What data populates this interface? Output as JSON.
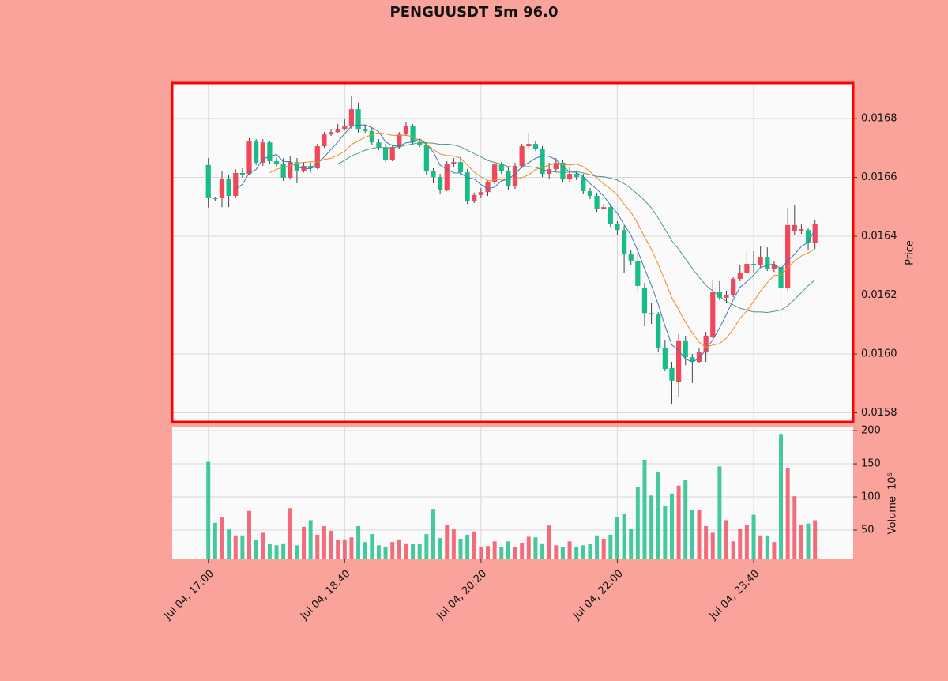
{
  "chart_data": {
    "type": "candlestick",
    "title": "PENGUUSDT 5m 96.0",
    "categories": [
      "Jul 04, 17:00",
      null,
      null,
      null,
      null,
      null,
      null,
      null,
      null,
      null,
      null,
      null,
      null,
      null,
      null,
      null,
      null,
      null,
      null,
      null,
      "Jul 04, 18:40",
      null,
      null,
      null,
      null,
      null,
      null,
      null,
      null,
      null,
      null,
      null,
      null,
      null,
      null,
      null,
      null,
      null,
      null,
      null,
      "Jul 04, 20:20",
      null,
      null,
      null,
      null,
      null,
      null,
      null,
      null,
      null,
      null,
      null,
      null,
      null,
      null,
      null,
      null,
      null,
      null,
      null,
      "Jul 04, 22:00",
      null,
      null,
      null,
      null,
      null,
      null,
      null,
      null,
      null,
      null,
      null,
      null,
      null,
      null,
      null,
      null,
      null,
      null,
      null,
      "Jul 04, 23:40",
      null,
      null,
      null,
      null,
      null,
      null,
      null,
      null,
      null
    ],
    "open": [
      0.016642,
      0.016529,
      0.016529,
      0.016596,
      0.016537,
      0.016615,
      0.016612,
      0.016722,
      0.01665,
      0.016719,
      0.016655,
      0.016647,
      0.016599,
      0.016652,
      0.016623,
      0.016639,
      0.016631,
      0.016706,
      0.016746,
      0.016754,
      0.016765,
      0.016773,
      0.016832,
      0.016765,
      0.016757,
      0.016719,
      0.016703,
      0.01666,
      0.016703,
      0.016746,
      0.016776,
      0.016719,
      0.016711,
      0.01662,
      0.016601,
      0.016558,
      0.016647,
      0.016652,
      0.016617,
      0.016518,
      0.01654,
      0.01655,
      0.016583,
      0.016644,
      0.016623,
      0.016569,
      0.016639,
      0.016706,
      0.016714,
      0.016698,
      0.016612,
      0.016628,
      0.01665,
      0.016593,
      0.016612,
      0.016601,
      0.016553,
      0.016537,
      0.016494,
      0.016499,
      0.016443,
      0.016421,
      0.016338,
      0.016317,
      0.016225,
      0.016139,
      0.016134,
      0.016019,
      0.015952,
      0.015906,
      0.016046,
      0.015989,
      0.015973,
      0.016005,
      0.016059,
      0.016212,
      0.016191,
      0.016201,
      0.016255,
      0.016274,
      0.016306,
      0.016303,
      0.01633,
      0.01629,
      0.016295,
      0.016225,
      0.016416,
      0.016419,
      0.016421,
      0.016376
    ],
    "high": [
      0.016666,
      0.016534,
      0.016623,
      0.016609,
      0.016628,
      0.016631,
      0.016733,
      0.01673,
      0.01673,
      0.016725,
      0.016666,
      0.016666,
      0.016674,
      0.016666,
      0.016652,
      0.01665,
      0.016714,
      0.016754,
      0.016765,
      0.016781,
      0.0168,
      0.016875,
      0.016854,
      0.016779,
      0.016768,
      0.01673,
      0.016714,
      0.016711,
      0.016754,
      0.016789,
      0.016781,
      0.01673,
      0.016719,
      0.016631,
      0.016612,
      0.016655,
      0.016666,
      0.016671,
      0.016628,
      0.016548,
      0.016564,
      0.016591,
      0.016652,
      0.016652,
      0.016634,
      0.01665,
      0.016714,
      0.016752,
      0.016725,
      0.016706,
      0.01665,
      0.016666,
      0.01666,
      0.016634,
      0.016623,
      0.016612,
      0.016564,
      0.016548,
      0.01651,
      0.01651,
      0.016451,
      0.016435,
      0.016354,
      0.01636,
      0.016242,
      0.016174,
      0.016142,
      0.016048,
      0.015973,
      0.016067,
      0.016062,
      0.016,
      0.016021,
      0.016075,
      0.01625,
      0.016247,
      0.016215,
      0.016263,
      0.016301,
      0.016354,
      0.016349,
      0.016365,
      0.016362,
      0.016317,
      0.01633,
      0.016497,
      0.016505,
      0.01644,
      0.016429,
      0.016454
    ],
    "low": [
      0.016497,
      0.016521,
      0.016499,
      0.016499,
      0.016532,
      0.016599,
      0.016607,
      0.016642,
      0.016639,
      0.016647,
      0.016634,
      0.016588,
      0.016593,
      0.01658,
      0.016617,
      0.016617,
      0.016628,
      0.016701,
      0.016741,
      0.016752,
      0.01676,
      0.016765,
      0.016752,
      0.016752,
      0.016709,
      0.016693,
      0.016652,
      0.016655,
      0.016698,
      0.016741,
      0.016711,
      0.016703,
      0.016607,
      0.01658,
      0.016542,
      0.016553,
      0.016634,
      0.016609,
      0.01651,
      0.016513,
      0.016532,
      0.016537,
      0.016577,
      0.016612,
      0.016558,
      0.016561,
      0.016631,
      0.016698,
      0.01669,
      0.016601,
      0.016596,
      0.016617,
      0.016585,
      0.016585,
      0.016591,
      0.016545,
      0.016526,
      0.016483,
      0.016489,
      0.016432,
      0.016403,
      0.016276,
      0.016303,
      0.016215,
      0.016094,
      0.016102,
      0.016005,
      0.015941,
      0.015828,
      0.015852,
      0.015962,
      0.015901,
      0.015968,
      0.015973,
      0.016054,
      0.016182,
      0.016174,
      0.016193,
      0.016247,
      0.016268,
      0.016276,
      0.016295,
      0.016282,
      0.016279,
      0.016113,
      0.016215,
      0.016405,
      0.016408,
      0.016354,
      0.016357
    ],
    "close": [
      0.016529,
      0.016526,
      0.016596,
      0.016537,
      0.016615,
      0.016609,
      0.016722,
      0.01665,
      0.016719,
      0.016655,
      0.016644,
      0.016599,
      0.016652,
      0.016623,
      0.016639,
      0.016631,
      0.016706,
      0.016746,
      0.016754,
      0.016765,
      0.016773,
      0.016832,
      0.016765,
      0.016757,
      0.016719,
      0.016703,
      0.01666,
      0.016703,
      0.016746,
      0.016776,
      0.016719,
      0.016711,
      0.01662,
      0.016601,
      0.016558,
      0.016647,
      0.016652,
      0.016617,
      0.016518,
      0.01654,
      0.01655,
      0.016583,
      0.016644,
      0.016623,
      0.016569,
      0.016639,
      0.016706,
      0.016714,
      0.016698,
      0.016612,
      0.016628,
      0.01665,
      0.016593,
      0.016612,
      0.016601,
      0.016553,
      0.016537,
      0.016494,
      0.016499,
      0.016443,
      0.016421,
      0.016338,
      0.016317,
      0.016231,
      0.016139,
      0.016137,
      0.016019,
      0.015949,
      0.015909,
      0.016046,
      0.015989,
      0.015973,
      0.016005,
      0.016062,
      0.016212,
      0.016191,
      0.016201,
      0.016255,
      0.016274,
      0.016306,
      0.016303,
      0.01633,
      0.01629,
      0.016301,
      0.016225,
      0.016438,
      0.016438,
      0.016424,
      0.016376,
      0.016443
    ],
    "volume": [
      153,
      61,
      69,
      51,
      42,
      42,
      79,
      35,
      46,
      29,
      27,
      30,
      83,
      27,
      55,
      65,
      43,
      56,
      49,
      35,
      36,
      39,
      56,
      32,
      44,
      27,
      24,
      32,
      36,
      30,
      29,
      29,
      44,
      82,
      38,
      58,
      51,
      37,
      43,
      48,
      25,
      26,
      33,
      25,
      33,
      25,
      31,
      40,
      39,
      30,
      57,
      27,
      24,
      33,
      24,
      27,
      29,
      42,
      37,
      43,
      70,
      75,
      52,
      115,
      156,
      102,
      137,
      86,
      105,
      117,
      126,
      81,
      80,
      56,
      46,
      146,
      65,
      33,
      52,
      58,
      73,
      42,
      42,
      32,
      195,
      143,
      101,
      58,
      60,
      65
    ],
    "up_color": "#f0485a",
    "down_color": "#17bd86",
    "moving_averages": [
      {
        "window": 5,
        "color": "#3b78b0"
      },
      {
        "window": 10,
        "color": "#f08a24"
      },
      {
        "window": 20,
        "color": "#4d9a78"
      }
    ],
    "xlim": [
      -5.3,
      94.6
    ],
    "ylim": [
      0.015769,
      0.016921
    ],
    "yticks": [
      0.0158,
      {
        "value": 0.016,
        "label": "0.0160"
      },
      0.0162,
      0.0164,
      0.0166,
      0.0168
    ],
    "ylabel": "Price",
    "volume_ylim": [
      6,
      206
    ],
    "volume_yticks": [
      50,
      100,
      150,
      200
    ],
    "volume_label": "Volume",
    "volume_unit": "10⁶",
    "grid": true
  }
}
